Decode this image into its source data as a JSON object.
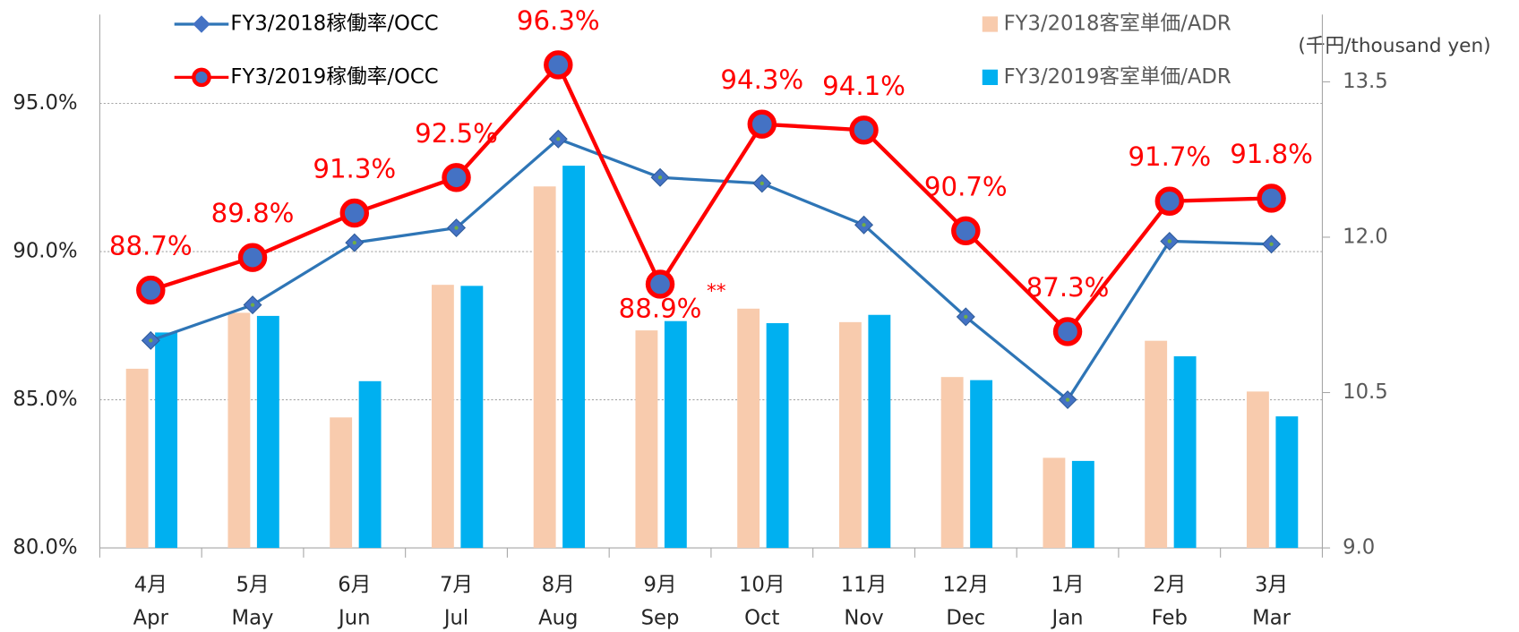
{
  "chart_data": {
    "type": "bar_line_combo",
    "categories": [
      [
        "4月",
        "Apr"
      ],
      [
        "5月",
        "May"
      ],
      [
        "6月",
        "Jun"
      ],
      [
        "7月",
        "Jul"
      ],
      [
        "8月",
        "Aug"
      ],
      [
        "9月",
        "Sep"
      ],
      [
        "10月",
        "Oct"
      ],
      [
        "11月",
        "Nov"
      ],
      [
        "12月",
        "Dec"
      ],
      [
        "1月",
        "Jan"
      ],
      [
        "2月",
        "Feb"
      ],
      [
        "3月",
        "Mar"
      ]
    ],
    "y2_label": "(千円/thousand yen)",
    "ylim": [
      80,
      98
    ],
    "yticks": [
      {
        "value": 80,
        "label": "80.0%"
      },
      {
        "value": 85,
        "label": "85.0%"
      },
      {
        "value": 90,
        "label": "90.0%"
      },
      {
        "value": 95,
        "label": "95.0%"
      }
    ],
    "y2lim": [
      9,
      14.15
    ],
    "y2ticks": [
      {
        "value": 9,
        "label": "9.0"
      },
      {
        "value": 10.5,
        "label": "10.5"
      },
      {
        "value": 12,
        "label": "12.0"
      },
      {
        "value": 13.5,
        "label": "13.5"
      }
    ],
    "grid": true,
    "series": [
      {
        "name": "FY3/2018客室単価/ADR",
        "type": "bar",
        "axis": "y2",
        "color": "#f8cbad",
        "values": [
          10.73,
          11.27,
          10.26,
          11.54,
          12.49,
          11.1,
          11.31,
          11.18,
          10.65,
          9.87,
          11.0,
          10.51
        ]
      },
      {
        "name": "FY3/2019客室単価/ADR",
        "type": "bar",
        "axis": "y2",
        "color": "#00b0f0",
        "values": [
          11.08,
          11.24,
          10.61,
          11.53,
          12.69,
          11.19,
          11.17,
          11.25,
          10.62,
          9.84,
          10.85,
          10.27
        ]
      },
      {
        "name": "FY3/2018稼働率/OCC",
        "type": "line",
        "color": "#2e75b6",
        "marker": "diamond",
        "values": [
          87.0,
          88.2,
          90.3,
          90.8,
          93.8,
          92.5,
          92.3,
          90.9,
          87.8,
          85.0,
          90.35,
          90.25
        ]
      },
      {
        "name": "FY3/2019稼働率/OCC",
        "type": "line",
        "color": "#ff0000",
        "marker": "circle",
        "values": [
          88.7,
          89.8,
          91.3,
          92.5,
          96.3,
          88.9,
          94.3,
          94.1,
          90.7,
          87.3,
          91.7,
          91.8
        ],
        "value_labels": [
          "88.7%",
          "89.8%",
          "91.3%",
          "92.5%",
          "96.3%",
          "88.9%",
          "94.3%",
          "94.1%",
          "90.7%",
          "87.3%",
          "91.7%",
          "91.8%"
        ]
      }
    ],
    "annotations": [
      "**"
    ]
  }
}
